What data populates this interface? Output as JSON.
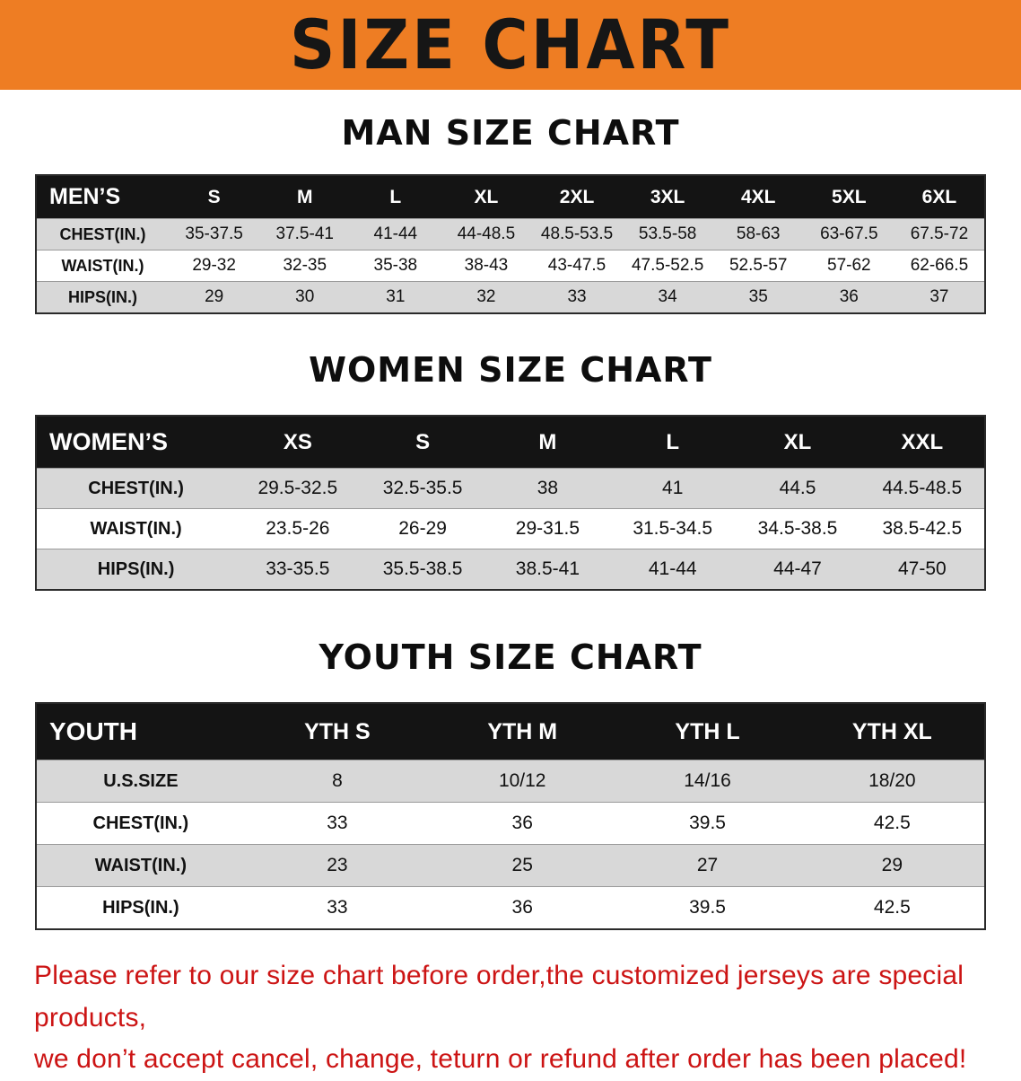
{
  "banner": {
    "title": "SIZE CHART"
  },
  "colors": {
    "banner_bg": "#ee7d23",
    "table_header_bg": "#141414",
    "table_header_fg": "#ffffff",
    "row_shade": "#d8d8d8",
    "footer_text": "#cc1414"
  },
  "sections": [
    {
      "heading": "MAN SIZE CHART",
      "table": {
        "corner": "MEN’S",
        "columns": [
          "S",
          "M",
          "L",
          "XL",
          "2XL",
          "3XL",
          "4XL",
          "5XL",
          "6XL"
        ],
        "rows": [
          {
            "label": "CHEST(IN.)",
            "values": [
              "35-37.5",
              "37.5-41",
              "41-44",
              "44-48.5",
              "48.5-53.5",
              "53.5-58",
              "58-63",
              "63-67.5",
              "67.5-72"
            ]
          },
          {
            "label": "WAIST(IN.)",
            "values": [
              "29-32",
              "32-35",
              "35-38",
              "38-43",
              "43-47.5",
              "47.5-52.5",
              "52.5-57",
              "57-62",
              "62-66.5"
            ]
          },
          {
            "label": "HIPS(IN.)",
            "values": [
              "29",
              "30",
              "31",
              "32",
              "33",
              "34",
              "35",
              "36",
              "37"
            ]
          }
        ]
      }
    },
    {
      "heading": "WOMEN SIZE CHART",
      "table": {
        "corner": "WOMEN’S",
        "columns": [
          "XS",
          "S",
          "M",
          "L",
          "XL",
          "XXL"
        ],
        "rows": [
          {
            "label": "CHEST(IN.)",
            "values": [
              "29.5-32.5",
              "32.5-35.5",
              "38",
              "41",
              "44.5",
              "44.5-48.5"
            ]
          },
          {
            "label": "WAIST(IN.)",
            "values": [
              "23.5-26",
              "26-29",
              "29-31.5",
              "31.5-34.5",
              "34.5-38.5",
              "38.5-42.5"
            ]
          },
          {
            "label": "HIPS(IN.)",
            "values": [
              "33-35.5",
              "35.5-38.5",
              "38.5-41",
              "41-44",
              "44-47",
              "47-50"
            ]
          }
        ]
      }
    },
    {
      "heading": "YOUTH SIZE CHART",
      "table": {
        "corner": "YOUTH",
        "columns": [
          "YTH S",
          "YTH M",
          "YTH L",
          "YTH XL"
        ],
        "rows": [
          {
            "label": "U.S.SIZE",
            "values": [
              "8",
              "10/12",
              "14/16",
              "18/20"
            ]
          },
          {
            "label": "CHEST(IN.)",
            "values": [
              "33",
              "36",
              "39.5",
              "42.5"
            ]
          },
          {
            "label": "WAIST(IN.)",
            "values": [
              "23",
              "25",
              "27",
              "29"
            ]
          },
          {
            "label": "HIPS(IN.)",
            "values": [
              "33",
              "36",
              "39.5",
              "42.5"
            ]
          }
        ]
      }
    }
  ],
  "footer": {
    "line1": "Please refer to our size chart before order,the customized jerseys are special products,",
    "line2": "we don’t accept cancel, change, teturn or refund after order has been placed!"
  }
}
